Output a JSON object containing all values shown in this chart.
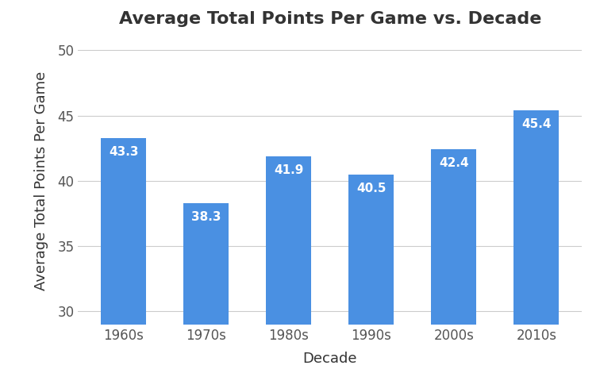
{
  "title": "Average Total Points Per Game vs. Decade",
  "xlabel": "Decade",
  "ylabel": "Average Total Points Per Game",
  "categories": [
    "1960s",
    "1970s",
    "1980s",
    "1990s",
    "2000s",
    "2010s"
  ],
  "values": [
    43.3,
    38.3,
    41.9,
    40.5,
    42.4,
    45.4
  ],
  "bar_color": "#4a90e2",
  "label_color": "#ffffff",
  "label_fontsize": 11,
  "title_fontsize": 16,
  "axis_label_fontsize": 13,
  "tick_fontsize": 12,
  "ylim": [
    29,
    51
  ],
  "yticks": [
    30,
    35,
    40,
    45,
    50
  ],
  "background_color": "#ffffff",
  "grid_color": "#cccccc",
  "bar_width": 0.55
}
